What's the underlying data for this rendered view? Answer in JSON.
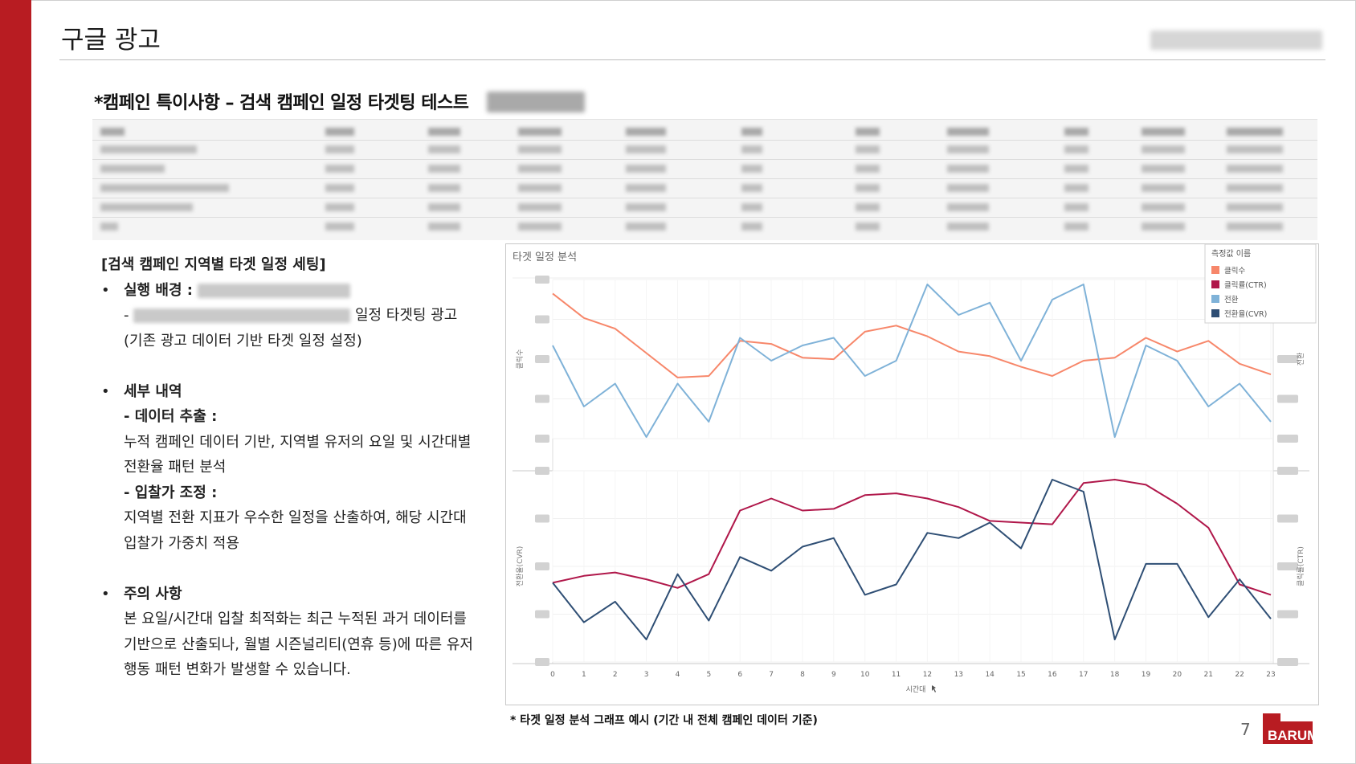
{
  "page": {
    "title": "구글 광고",
    "section_title": "*캠페인 특이사항 – 검색 캠페인 일정 타겟팅 테스트",
    "page_number": "7",
    "logo_text": "BARUM"
  },
  "left": {
    "heading": "[검색 캠페인 지역별 타겟 일정 세팅]",
    "bullet1_label": "실행 배경 :",
    "bullet1_suffix": "일정 타겟팅 광고",
    "bullet1_note": "(기존 광고 데이터 기반 타겟 일정 설정)",
    "bullet2_label": "세부 내역",
    "sub1_label": "- 데이터 추출 :",
    "sub1_line1": "누적 캠페인 데이터 기반, 지역별 유저의 요일 및 시간대별",
    "sub1_line2": "전환율 패턴 분석",
    "sub2_label": "- 입찰가 조정 :",
    "sub2_line1": "지역별 전환 지표가 우수한 일정을 산출하여, 해당 시간대",
    "sub2_line2": "입찰가 가중치 적용",
    "bullet3_label": "주의 사항",
    "note_line1": "본 요일/시간대 입찰 최적화는 최근 누적된 과거 데이터를",
    "note_line2": "기반으로 산출되나, 월별 시즌널리티(연휴 등)에 따른 유저",
    "note_line3": "행동 패턴 변화가 발생할 수 있습니다."
  },
  "chart_caption": "* 타겟 일정 분석 그래프 예시 (기간 내 전체 캠페인 데이터 기준)",
  "chart_data": {
    "type": "line",
    "title": "타겟 일정 분석",
    "xlabel": "시간대",
    "x": [
      0,
      1,
      2,
      3,
      4,
      5,
      6,
      7,
      8,
      9,
      10,
      11,
      12,
      13,
      14,
      15,
      16,
      17,
      18,
      19,
      20,
      21,
      22,
      23
    ],
    "legend_title": "측정값 이름",
    "legend_position": "top-right",
    "grid": true,
    "panels": [
      {
        "ylabel_left": "클릭수",
        "ylabel_right": "전환",
        "series": [
          {
            "name": "클릭수",
            "axis": "left",
            "color": "#f7876a",
            "values": [
              0.94,
              0.78,
              0.71,
              0.55,
              0.39,
              0.4,
              0.63,
              0.61,
              0.52,
              0.51,
              0.69,
              0.73,
              0.66,
              0.56,
              0.53,
              0.46,
              0.4,
              0.5,
              0.52,
              0.65,
              0.56,
              0.63,
              0.48,
              0.41
            ]
          },
          {
            "name": "전환",
            "axis": "right",
            "color": "#7fb2d8",
            "values": [
              0.6,
              0.2,
              0.35,
              0.0,
              0.35,
              0.1,
              0.65,
              0.5,
              0.6,
              0.65,
              0.4,
              0.5,
              1.0,
              0.8,
              0.88,
              0.5,
              0.9,
              1.0,
              0.0,
              0.6,
              0.5,
              0.2,
              0.35,
              0.1
            ]
          }
        ]
      },
      {
        "ylabel_left": "전환율(CVR)",
        "ylabel_right": "클릭률(CTR)",
        "series": [
          {
            "name": "클릭률(CTR)",
            "axis": "right",
            "color": "#b0174a",
            "values": [
              0.4,
              0.44,
              0.46,
              0.42,
              0.37,
              0.45,
              0.82,
              0.89,
              0.82,
              0.83,
              0.91,
              0.92,
              0.89,
              0.84,
              0.76,
              0.75,
              0.74,
              0.98,
              1.0,
              0.97,
              0.86,
              0.72,
              0.39,
              0.33
            ]
          },
          {
            "name": "전환율(CVR)",
            "axis": "left",
            "color": "#2e4e74",
            "values": [
              0.4,
              0.17,
              0.29,
              0.07,
              0.45,
              0.18,
              0.55,
              0.47,
              0.61,
              0.66,
              0.33,
              0.39,
              0.69,
              0.66,
              0.75,
              0.6,
              1.0,
              0.93,
              0.07,
              0.51,
              0.51,
              0.2,
              0.42,
              0.19
            ]
          }
        ]
      }
    ]
  }
}
